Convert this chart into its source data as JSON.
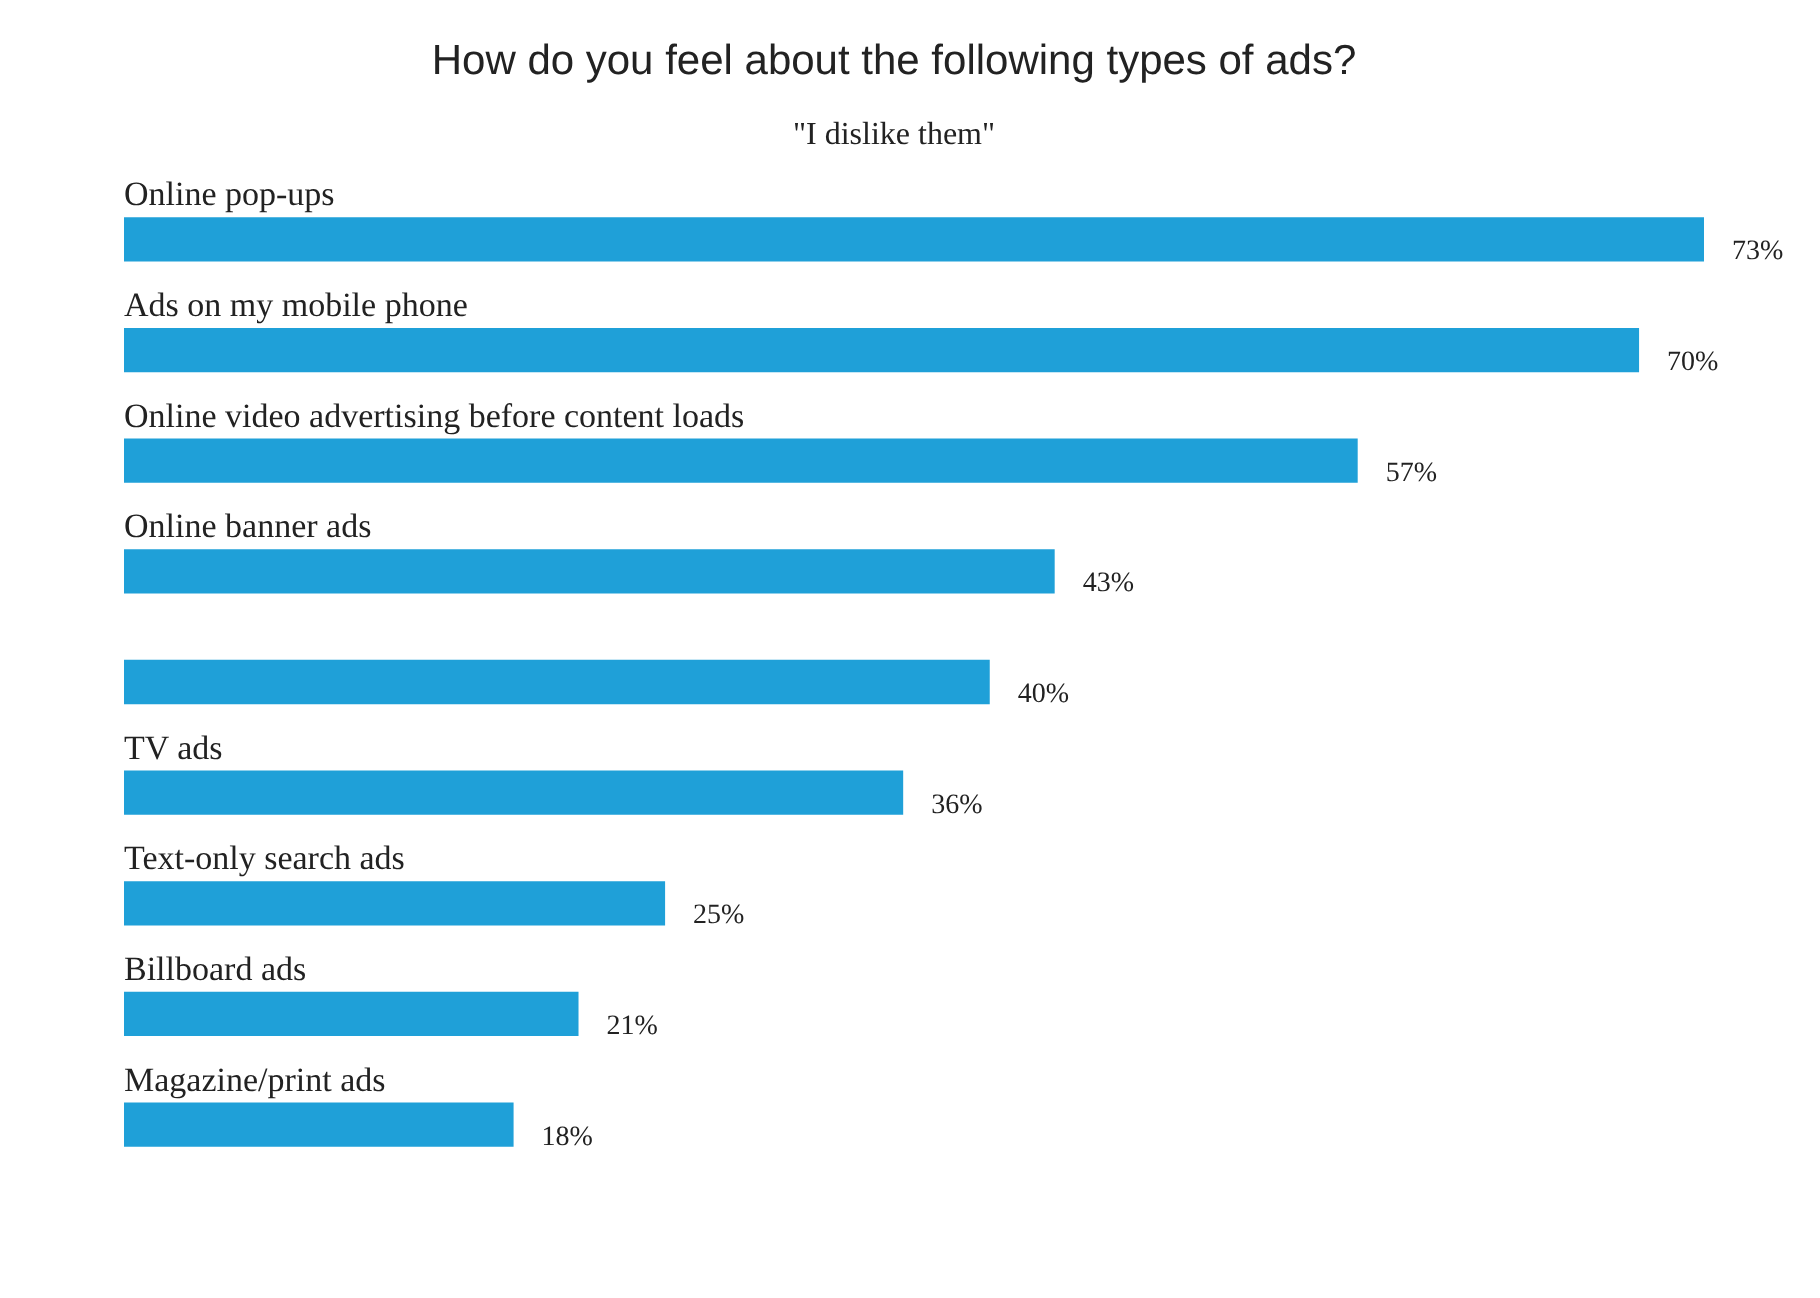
{
  "chart_data": {
    "type": "bar",
    "orientation": "horizontal",
    "title": "How do you feel about the following types of ads?",
    "subtitle": "\"I dislike them\"",
    "categories": [
      "Online pop-ups",
      "Ads on my mobile phone",
      "Online video advertising before content loads",
      "Online banner ads",
      null,
      "TV ads",
      "Text-only search ads",
      "Billboard ads",
      "Magazine/print ads"
    ],
    "values": [
      73,
      70,
      57,
      43,
      40,
      36,
      25,
      21,
      18
    ],
    "value_labels": [
      "73%",
      "70%",
      "57%",
      "43%",
      "40%",
      "36%",
      "25%",
      "21%",
      "18%"
    ],
    "color": "#1fa0d8"
  }
}
